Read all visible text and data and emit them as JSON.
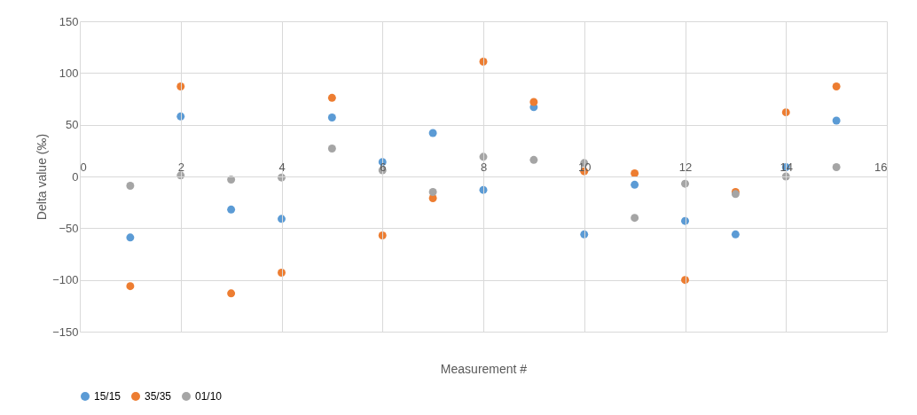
{
  "chart_data": {
    "type": "scatter",
    "xlabel": "Measurement #",
    "ylabel": "Delta value (‰)",
    "x": [
      1,
      2,
      3,
      4,
      5,
      6,
      7,
      8,
      9,
      10,
      11,
      12,
      13,
      14,
      15
    ],
    "series": [
      {
        "name": "15/15",
        "color": "#5b9bd5",
        "values": [
          -59,
          58,
          -32,
          -41,
          57,
          14,
          42,
          -13,
          67,
          -56,
          -8,
          -43,
          -56,
          9,
          54
        ]
      },
      {
        "name": "35/35",
        "color": "#ed7d31",
        "values": [
          -106,
          87,
          -113,
          -93,
          76,
          -57,
          -21,
          111,
          72,
          5,
          3,
          -100,
          -15,
          62,
          87
        ]
      },
      {
        "name": "01/10",
        "color": "#a5a5a5",
        "values": [
          -9,
          1,
          -3,
          -1,
          27,
          6,
          -15,
          19,
          16,
          13,
          -40,
          -7,
          -17,
          0,
          9
        ]
      }
    ],
    "xlim": [
      0,
      16
    ],
    "xticks": [
      0,
      2,
      4,
      6,
      8,
      10,
      12,
      14,
      16
    ],
    "ylim": [
      -150,
      150
    ],
    "yticks": [
      -150,
      -100,
      -50,
      0,
      50,
      100,
      150
    ],
    "grid": true,
    "legend": "bottom",
    "marker": "circle"
  }
}
